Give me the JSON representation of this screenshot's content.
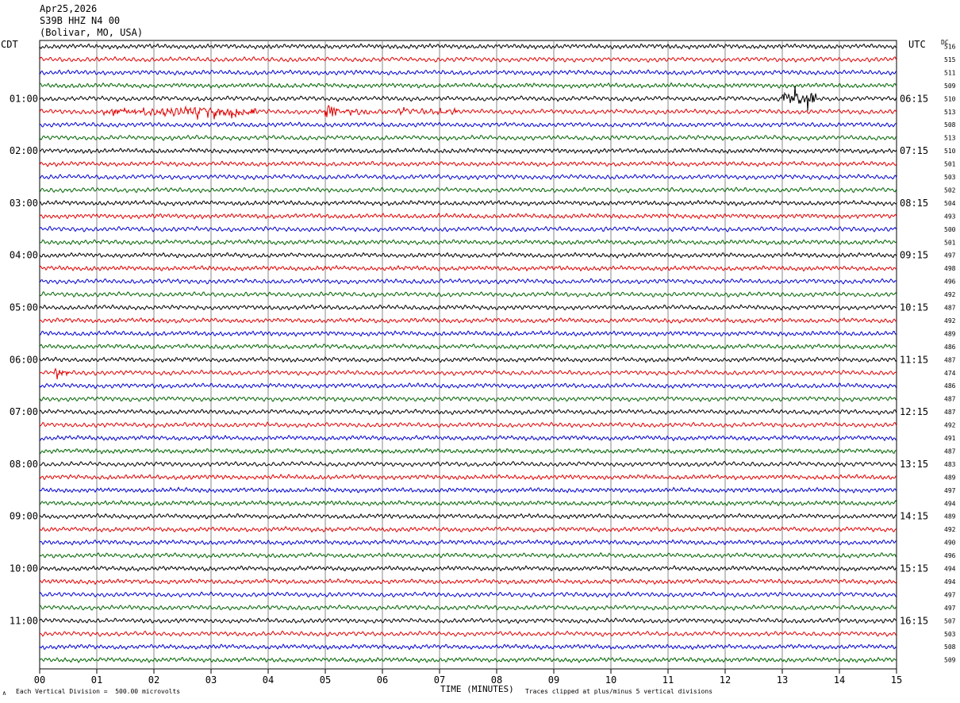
{
  "header": {
    "date": "Apr25,2026",
    "station": "S39B HHZ N4 00",
    "location": "(Bolivar, MO, USA)"
  },
  "left_zone_label": "CDT",
  "right_zone_label": "UTC",
  "dc_label": "DC",
  "footer": {
    "scale_note": "Each Vertical Division =  500.00 microvolts",
    "clip_note": "Traces clipped at plus/minus 5 vertical divisions",
    "corner_mark": "∧"
  },
  "colors": {
    "trace_cycle": [
      "#000000",
      "#e00000",
      "#0000d0",
      "#006400"
    ],
    "grid": "#888888"
  },
  "chart_data": {
    "type": "line",
    "title": "",
    "xlabel": "TIME (MINUTES)",
    "xlim": [
      0,
      15
    ],
    "x_ticks": [
      "00",
      "01",
      "02",
      "03",
      "04",
      "05",
      "06",
      "07",
      "08",
      "09",
      "10",
      "11",
      "12",
      "13",
      "14",
      "15"
    ],
    "left_time_labels": [
      "01:00",
      "02:00",
      "03:00",
      "04:00",
      "05:00",
      "06:00",
      "07:00",
      "08:00",
      "09:00",
      "10:00",
      "11:00"
    ],
    "right_time_labels": [
      "06:15",
      "07:15",
      "08:15",
      "09:15",
      "10:15",
      "11:15",
      "12:15",
      "13:15",
      "14:15",
      "15:15",
      "16:15"
    ],
    "dc_offsets": [
      516,
      515,
      511,
      509,
      510,
      513,
      508,
      513,
      510,
      501,
      503,
      502,
      504,
      493,
      500,
      501,
      497,
      498,
      496,
      492,
      487,
      492,
      489,
      486,
      487,
      474,
      486,
      487,
      487,
      492,
      491,
      487,
      483,
      489,
      497,
      494,
      489,
      492,
      490,
      496,
      494,
      494,
      497,
      497,
      507,
      503,
      508,
      509
    ],
    "events": [
      {
        "trace": 4,
        "start_min": 13.0,
        "end_min": 13.6,
        "amp": 2.2
      },
      {
        "trace": 5,
        "start_min": 1.1,
        "end_min": 3.8,
        "amp": 1.3
      },
      {
        "trace": 5,
        "start_min": 5.0,
        "end_min": 5.2,
        "amp": 2.6
      },
      {
        "trace": 5,
        "start_min": 5.3,
        "end_min": 7.3,
        "amp": 0.6
      },
      {
        "trace": 25,
        "start_min": 0.2,
        "end_min": 0.5,
        "amp": 1.0
      }
    ]
  }
}
